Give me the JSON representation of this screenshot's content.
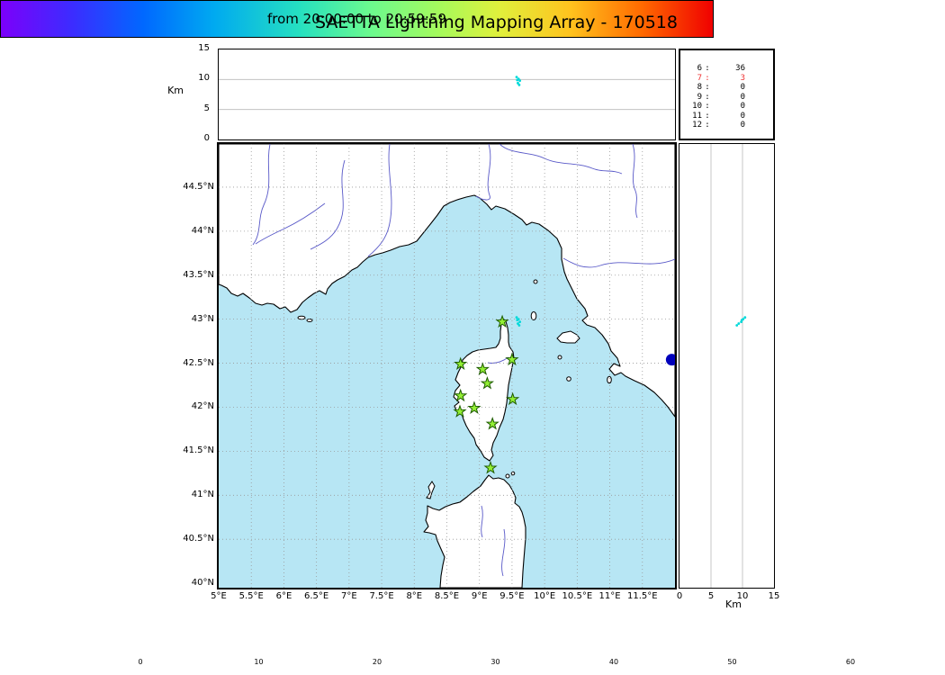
{
  "title": "SAETTA Lightning Mapping Array - 170518",
  "chart_data": {
    "type": "scatter",
    "subtype": "lma_composite_map_plot",
    "map": {
      "lon_min": 5.0,
      "lon_max": 12.0,
      "lat_min": 39.95,
      "lat_max": 44.99,
      "lon_ticks": [
        [
          5,
          "5°E"
        ],
        [
          5.5,
          "5.5°E"
        ],
        [
          6,
          "6°E"
        ],
        [
          6.5,
          "6.5°E"
        ],
        [
          7,
          "7°E"
        ],
        [
          7.5,
          "7.5°E"
        ],
        [
          8,
          "8°E"
        ],
        [
          8.5,
          "8.5°E"
        ],
        [
          9,
          "9°E"
        ],
        [
          9.5,
          "9.5°E"
        ],
        [
          10,
          "10°E"
        ],
        [
          10.5,
          "10.5°E"
        ],
        [
          11,
          "11°E"
        ],
        [
          11.5,
          "11.5°E"
        ]
      ],
      "lat_ticks": [
        [
          44.5,
          "44.5°N"
        ],
        [
          44,
          "44°N"
        ],
        [
          43.5,
          "43.5°N"
        ],
        [
          43,
          "43°N"
        ],
        [
          42.5,
          "42.5°N"
        ],
        [
          42,
          "42°N"
        ],
        [
          41.5,
          "41.5°N"
        ],
        [
          41,
          "41°N"
        ],
        [
          40.5,
          "40.5°N"
        ],
        [
          40,
          "40°N"
        ]
      ],
      "grid_lons": [
        5.5,
        6,
        6.5,
        7,
        7.5,
        8,
        8.5,
        9,
        9.5,
        10,
        10.5,
        11,
        11.5
      ],
      "grid_lats": [
        40.5,
        41,
        41.5,
        42,
        42.5,
        43,
        43.5,
        44,
        44.5
      ],
      "stations_lon_lat": [
        [
          9.35,
          42.97
        ],
        [
          8.71,
          42.49
        ],
        [
          9.05,
          42.43
        ],
        [
          9.5,
          42.54
        ],
        [
          9.12,
          42.27
        ],
        [
          8.71,
          42.13
        ],
        [
          9.51,
          42.09
        ],
        [
          8.7,
          41.95
        ],
        [
          8.92,
          41.99
        ],
        [
          9.2,
          41.81
        ],
        [
          9.17,
          41.31
        ]
      ],
      "city_marker_lon_lat": [
        11.95,
        42.54
      ],
      "grid": true
    },
    "alt_axis": {
      "label": "Km",
      "min": 0,
      "max": 15,
      "ticks": [
        0,
        5,
        10,
        15
      ],
      "grid": [
        5,
        10
      ]
    },
    "sources_lon_lat_altkm": [
      [
        9.57,
        43.02,
        10.4
      ],
      [
        9.6,
        43.0,
        10.1
      ],
      [
        9.62,
        42.97,
        9.8
      ],
      [
        9.59,
        42.95,
        9.4
      ],
      [
        9.61,
        42.93,
        9.1
      ],
      [
        9.58,
        42.99,
        9.9
      ]
    ],
    "counts": {
      "sep": ":",
      "rows": [
        [
          6,
          36
        ],
        [
          7,
          3
        ],
        [
          8,
          0
        ],
        [
          9,
          0
        ],
        [
          10,
          0
        ],
        [
          11,
          0
        ],
        [
          12,
          0
        ]
      ],
      "highlight_row": 7
    },
    "colorbar": {
      "label": "from 20:00:00 to 20:59:59",
      "min": 0,
      "max": 60,
      "ticks": [
        0,
        10,
        20,
        30,
        40,
        50,
        60
      ],
      "colormap": "rainbow"
    },
    "colors": {
      "sea": "#b7e6f4",
      "station": "#93ef34",
      "station_edge": "#1e5c00",
      "source": "#00d9d9",
      "city": "#0000bb",
      "river": "#5959c8",
      "grid": "#999999",
      "highlight": "#ee3333"
    }
  }
}
